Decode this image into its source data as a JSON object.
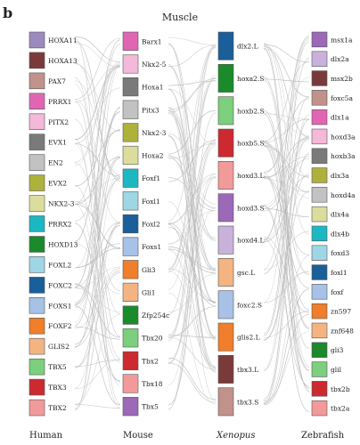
{
  "panel_label": "b",
  "title": "Muscle",
  "columns": [
    {
      "name": "Human",
      "italic": false,
      "items": [
        {
          "label": "HOXA11",
          "color": "#9c89bd"
        },
        {
          "label": "HOXA13",
          "color": "#7a3a3a"
        },
        {
          "label": "PAX7",
          "color": "#c0928b"
        },
        {
          "label": "PRRX1",
          "color": "#e066b4"
        },
        {
          "label": "PITX2",
          "color": "#f4b8d8"
        },
        {
          "label": "EVX1",
          "color": "#7a7a7a"
        },
        {
          "label": "EN2",
          "color": "#c2c2c2"
        },
        {
          "label": "EVX2",
          "color": "#aeb23a"
        },
        {
          "label": "NKX2-3",
          "color": "#dcdd9c"
        },
        {
          "label": "PRRX2",
          "color": "#1cb8c2"
        },
        {
          "label": "HOXD13",
          "color": "#1a8a2a"
        },
        {
          "label": "FOXL2",
          "color": "#9fd6e6"
        },
        {
          "label": "FOXC2",
          "color": "#1a5e9a"
        },
        {
          "label": "FOXS1",
          "color": "#a7c2e6"
        },
        {
          "label": "FOXF2",
          "color": "#f07e2a"
        },
        {
          "label": "GLIS2",
          "color": "#f4b482"
        },
        {
          "label": "TBX5",
          "color": "#7ccf7c"
        },
        {
          "label": "TBX3",
          "color": "#cc2a30"
        },
        {
          "label": "TBX2",
          "color": "#f29a9a"
        }
      ]
    },
    {
      "name": "Mouse",
      "italic": false,
      "items": [
        {
          "label": "Barx1",
          "color": "#e066b4"
        },
        {
          "label": "Nkx2-5",
          "color": "#f4b8d8"
        },
        {
          "label": "Hoxa1",
          "color": "#7a7a7a"
        },
        {
          "label": "Pitx3",
          "color": "#c2c2c2"
        },
        {
          "label": "Nkx2-3",
          "color": "#aeb23a"
        },
        {
          "label": "Hoxa2",
          "color": "#dcdd9c"
        },
        {
          "label": "Foxf1",
          "color": "#1cb8c2"
        },
        {
          "label": "Foxl1",
          "color": "#9fd6e6"
        },
        {
          "label": "Foxl2",
          "color": "#1a5e9a"
        },
        {
          "label": "Foxs1",
          "color": "#a7c2e6"
        },
        {
          "label": "Gli3",
          "color": "#f07e2a"
        },
        {
          "label": "Gli1",
          "color": "#f4b482"
        },
        {
          "label": "Zfp254c",
          "color": "#1a8a2a"
        },
        {
          "label": "Tbx20",
          "color": "#7ccf7c"
        },
        {
          "label": "Tbx2",
          "color": "#cc2a30"
        },
        {
          "label": "Tbx18",
          "color": "#f29a9a"
        },
        {
          "label": "Tbx5",
          "color": "#9c68b8"
        }
      ]
    },
    {
      "name": "Xenopus",
      "italic": true,
      "items": [
        {
          "label": "dlx2.L",
          "color": "#1a5e9a"
        },
        {
          "label": "hoxa2.S",
          "color": "#1a8a2a"
        },
        {
          "label": "hoxb2.S",
          "color": "#7ccf7c"
        },
        {
          "label": "hoxb5.S",
          "color": "#cc2a30"
        },
        {
          "label": "hoxd3.L",
          "color": "#f29a9a"
        },
        {
          "label": "hoxd3.S",
          "color": "#9c68b8"
        },
        {
          "label": "hoxd4.L",
          "color": "#c8b2dc"
        },
        {
          "label": "gsc.L",
          "color": "#f4b482"
        },
        {
          "label": "foxc2.S",
          "color": "#a7c2e6"
        },
        {
          "label": "glis2.L",
          "color": "#f07e2a"
        },
        {
          "label": "tbx3.L",
          "color": "#7a3a3a"
        },
        {
          "label": "tbx3.S",
          "color": "#c0928b"
        }
      ]
    },
    {
      "name": "Zebrafish",
      "italic": false,
      "items": [
        {
          "label": "msx1a",
          "color": "#9c68b8"
        },
        {
          "label": "dlx2a",
          "color": "#c8b2dc"
        },
        {
          "label": "msx2b",
          "color": "#7a3a3a"
        },
        {
          "label": "foxc5a",
          "color": "#c0928b"
        },
        {
          "label": "dlx1a",
          "color": "#e066b4"
        },
        {
          "label": "hoxd3a",
          "color": "#f4b8d8"
        },
        {
          "label": "hoxb3a",
          "color": "#7a7a7a"
        },
        {
          "label": "dlx3a",
          "color": "#aeb23a"
        },
        {
          "label": "hoxd4a",
          "color": "#c2c2c2"
        },
        {
          "label": "dlx4a",
          "color": "#dcdd9c"
        },
        {
          "label": "dlx4b",
          "color": "#1cb8c2"
        },
        {
          "label": "foxd3",
          "color": "#9fd6e6"
        },
        {
          "label": "foxl1",
          "color": "#1a5e9a"
        },
        {
          "label": "foxf",
          "color": "#a7c2e6"
        },
        {
          "label": "zn597",
          "color": "#f07e2a"
        },
        {
          "label": "znf648",
          "color": "#f4b482"
        },
        {
          "label": "gli3",
          "color": "#1a8a2a"
        },
        {
          "label": "glil",
          "color": "#7ccf7c"
        },
        {
          "label": "tbx2b",
          "color": "#cc2a30"
        },
        {
          "label": "tbx2a",
          "color": "#f29a9a"
        }
      ]
    }
  ]
}
